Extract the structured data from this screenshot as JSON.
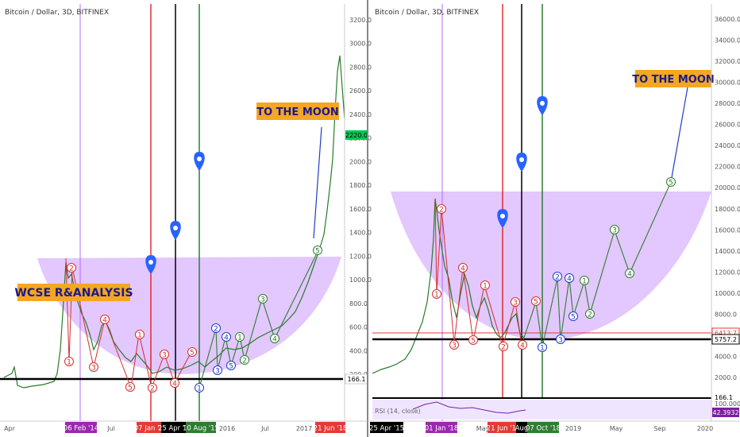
{
  "panels": [
    {
      "title": "Bitcoin / Dollar, 3D, BITFINEX",
      "price_ticks": [
        "3200.0",
        "3000.0",
        "2800.0",
        "2600.0",
        "2400.0",
        "2200.0",
        "2000.0",
        "1800.0",
        "1600.0",
        "1400.0",
        "1200.0",
        "1000.0",
        "800.0",
        "600.0",
        "400.0",
        "200.0"
      ],
      "current_price_label": "2220.0",
      "support_label": "166.1",
      "annotations": [
        {
          "text": "WCSE R&ANALYSIS"
        },
        {
          "text": "TO THE MOON"
        }
      ],
      "time_labels": [
        "Apr",
        "Jul",
        "2016",
        "Jul",
        "2017"
      ],
      "date_badges": [
        "06 Feb '14",
        "07 Jan '15",
        "25 Apr '15",
        "10 Aug '15",
        "21 Jun '18"
      ],
      "wave_labels": [
        "1",
        "2",
        "3",
        "4",
        "5",
        "1",
        "2",
        "3",
        "4",
        "5",
        "1",
        "2",
        "3",
        "4",
        "5",
        "1",
        "2",
        "3",
        "4",
        "5"
      ]
    },
    {
      "title": "Bitcoin / Dollar, 3D, BITFINEX",
      "price_ticks": [
        "36000.0",
        "34000.0",
        "32000.0",
        "30000.0",
        "28000.0",
        "26000.0",
        "24000.0",
        "22000.0",
        "20000.0",
        "18000.0",
        "16000.0",
        "14000.0",
        "12000.0",
        "10000.0",
        "8000.0",
        "6000.0",
        "4000.0",
        "2000.0"
      ],
      "price_labels": [
        "6413.7",
        "5757.2",
        "166.1"
      ],
      "annotations": [
        {
          "text": "TO THE MOON"
        }
      ],
      "indicator_label": "RSI (14, close)",
      "indicator_ticks": [
        "100.0000",
        "42.3932"
      ],
      "time_labels": [
        "May",
        "2019",
        "May",
        "Sep",
        "2020"
      ],
      "date_badges": [
        "25 Apr '15",
        "01 Jan '18",
        "21 Jun '18",
        "Aug",
        "07 Oct '18"
      ],
      "wave_labels": [
        "1",
        "2",
        "3",
        "4",
        "5",
        "1",
        "2",
        "3",
        "4",
        "5",
        "1",
        "2",
        "3",
        "4",
        "5"
      ]
    }
  ],
  "colors": {
    "bowl_fill": "#cc99ff",
    "badge_orange": "#f5a623",
    "badge_text": "#1a1a8c",
    "marker_blue": "#2962ff",
    "line_red": "#e00000",
    "line_green": "#2e7d32",
    "line_violet": "#b36bff",
    "line_black": "#000000"
  }
}
